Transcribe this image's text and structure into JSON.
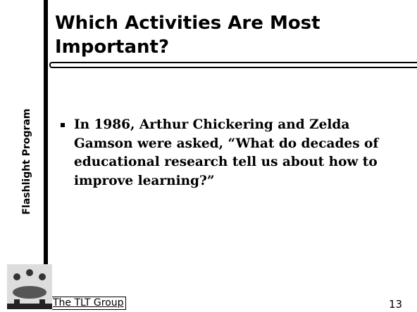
{
  "sidebar": {
    "label": "Flashlight Program"
  },
  "title": {
    "lines": [
      "Which Activities Are Most",
      "Important?"
    ]
  },
  "bullets": [
    "In 1986, Arthur Chickering and Zelda Gamson were asked, “What do decades of educational research tell us about how to improve learning?”"
  ],
  "footer": {
    "link": "The TLT Group",
    "page_number": "13"
  }
}
